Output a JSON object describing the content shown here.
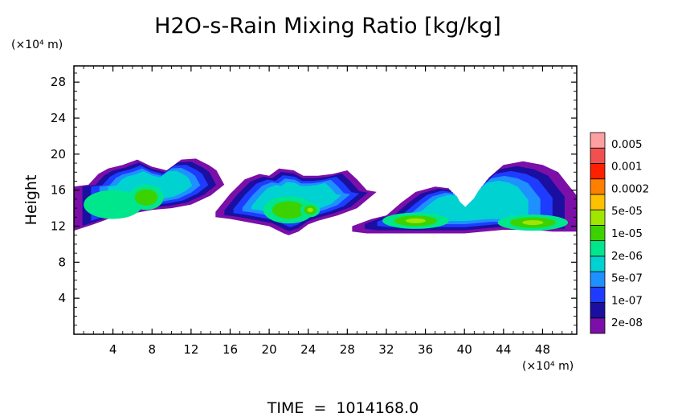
{
  "chart_data": {
    "type": "heatmap",
    "title": "H2O-s-Rain Mixing Ratio [kg/kg]",
    "ylabel": "Height",
    "yunit": "(×10⁴ m)",
    "xunit": "(×10⁴ m)",
    "xlim": [
      0,
      51.5
    ],
    "ylim": [
      0,
      29.8
    ],
    "xticks": [
      4,
      8,
      12,
      16,
      20,
      24,
      28,
      32,
      36,
      40,
      44,
      48
    ],
    "yticks": [
      4,
      8,
      12,
      16,
      20,
      24,
      28
    ],
    "footer": "TIME  =  1014168.0",
    "colorbar": {
      "colors": [
        "#7b0fa8",
        "#1a0fa0",
        "#1e3cff",
        "#1e90ff",
        "#00d2d2",
        "#00e68c",
        "#3cd200",
        "#a0e600",
        "#ffc000",
        "#ff8000",
        "#ff2000",
        "#f05050",
        "#ffa0a0"
      ],
      "labels": [
        "2e-08",
        "1e-07",
        "5e-07",
        "2e-06",
        "1e-05",
        "5e-05",
        "0.0002",
        "0.001",
        "0.005"
      ]
    },
    "fields": [
      {
        "name": "cloud-left",
        "xlim": [
          0,
          15.5
        ],
        "ylim": [
          11.5,
          19.5
        ],
        "top": [
          [
            0,
            16.4
          ],
          [
            1.5,
            16.6
          ],
          [
            2.5,
            17.8
          ],
          [
            3.5,
            18.4
          ],
          [
            5,
            18.8
          ],
          [
            6.5,
            19.4
          ],
          [
            8,
            18.6
          ],
          [
            9.5,
            18.2
          ],
          [
            11,
            19.4
          ],
          [
            12.5,
            19.5
          ],
          [
            13.8,
            18.8
          ],
          [
            14.6,
            18.2
          ],
          [
            15.4,
            16.6
          ]
        ],
        "bottom": [
          [
            15.4,
            16.6
          ],
          [
            14,
            15.4
          ],
          [
            12,
            14.4
          ],
          [
            10,
            14
          ],
          [
            8,
            13.8
          ],
          [
            6,
            13.4
          ],
          [
            4,
            13
          ],
          [
            2,
            12.2
          ],
          [
            0,
            11.5
          ]
        ],
        "core": [
          {
            "x": 4,
            "y": 14.4,
            "rx": 3,
            "ry": 1.6,
            "level": 5
          },
          {
            "x": 7.4,
            "y": 15.2,
            "rx": 1.8,
            "ry": 1.4,
            "level": 6
          }
        ]
      },
      {
        "name": "cloud-middle",
        "xlim": [
          14.5,
          31.5
        ],
        "ylim": [
          11,
          19
        ],
        "top": [
          [
            14.5,
            13.6
          ],
          [
            16,
            15.6
          ],
          [
            17.5,
            17.2
          ],
          [
            19,
            17.8
          ],
          [
            20,
            17.6
          ],
          [
            21,
            18.4
          ],
          [
            22.5,
            18.2
          ],
          [
            23.5,
            17.6
          ],
          [
            25,
            17.6
          ],
          [
            26.5,
            17.8
          ],
          [
            28,
            18.2
          ],
          [
            29,
            17.2
          ],
          [
            30,
            16
          ],
          [
            31,
            15.8
          ]
        ],
        "bottom": [
          [
            31,
            15.8
          ],
          [
            29,
            14
          ],
          [
            27,
            13.2
          ],
          [
            25,
            12.6
          ],
          [
            24,
            12.2
          ],
          [
            23,
            11.4
          ],
          [
            22,
            11
          ],
          [
            21.5,
            11.2
          ],
          [
            20,
            12
          ],
          [
            18,
            12.4
          ],
          [
            16,
            12.8
          ],
          [
            14.5,
            13
          ]
        ],
        "core": [
          {
            "x": 22,
            "y": 13.8,
            "rx": 2.6,
            "ry": 1.5,
            "level": 6
          },
          {
            "x": 24.2,
            "y": 13.8,
            "rx": 1,
            "ry": 0.8,
            "level": 7
          }
        ]
      },
      {
        "name": "cloud-right",
        "xlim": [
          28,
          51.5
        ],
        "ylim": [
          11,
          19.2
        ],
        "top": [
          [
            28.5,
            12
          ],
          [
            30.5,
            12.8
          ],
          [
            32,
            13.2
          ],
          [
            33.5,
            14.6
          ],
          [
            35,
            15.8
          ],
          [
            37,
            16.4
          ],
          [
            38.4,
            16.2
          ],
          [
            39,
            15
          ],
          [
            40,
            14
          ],
          [
            41.5,
            15.6
          ],
          [
            42.5,
            17.4
          ],
          [
            44,
            18.8
          ],
          [
            46,
            19.2
          ],
          [
            48,
            18.8
          ],
          [
            49.6,
            18
          ],
          [
            50.6,
            16.6
          ],
          [
            51.5,
            15.4
          ]
        ],
        "bottom": [
          [
            51.5,
            11.4
          ],
          [
            49,
            11.4
          ],
          [
            47,
            11.6
          ],
          [
            44,
            11.6
          ],
          [
            40,
            11.2
          ],
          [
            36,
            11.2
          ],
          [
            32,
            11.2
          ],
          [
            30,
            11.2
          ],
          [
            28.5,
            11.4
          ]
        ],
        "core": [
          {
            "x": 35,
            "y": 12.6,
            "rx": 3.4,
            "ry": 0.9,
            "level": 7
          },
          {
            "x": 47,
            "y": 12.4,
            "rx": 3.6,
            "ry": 0.9,
            "level": 7
          }
        ]
      }
    ]
  }
}
